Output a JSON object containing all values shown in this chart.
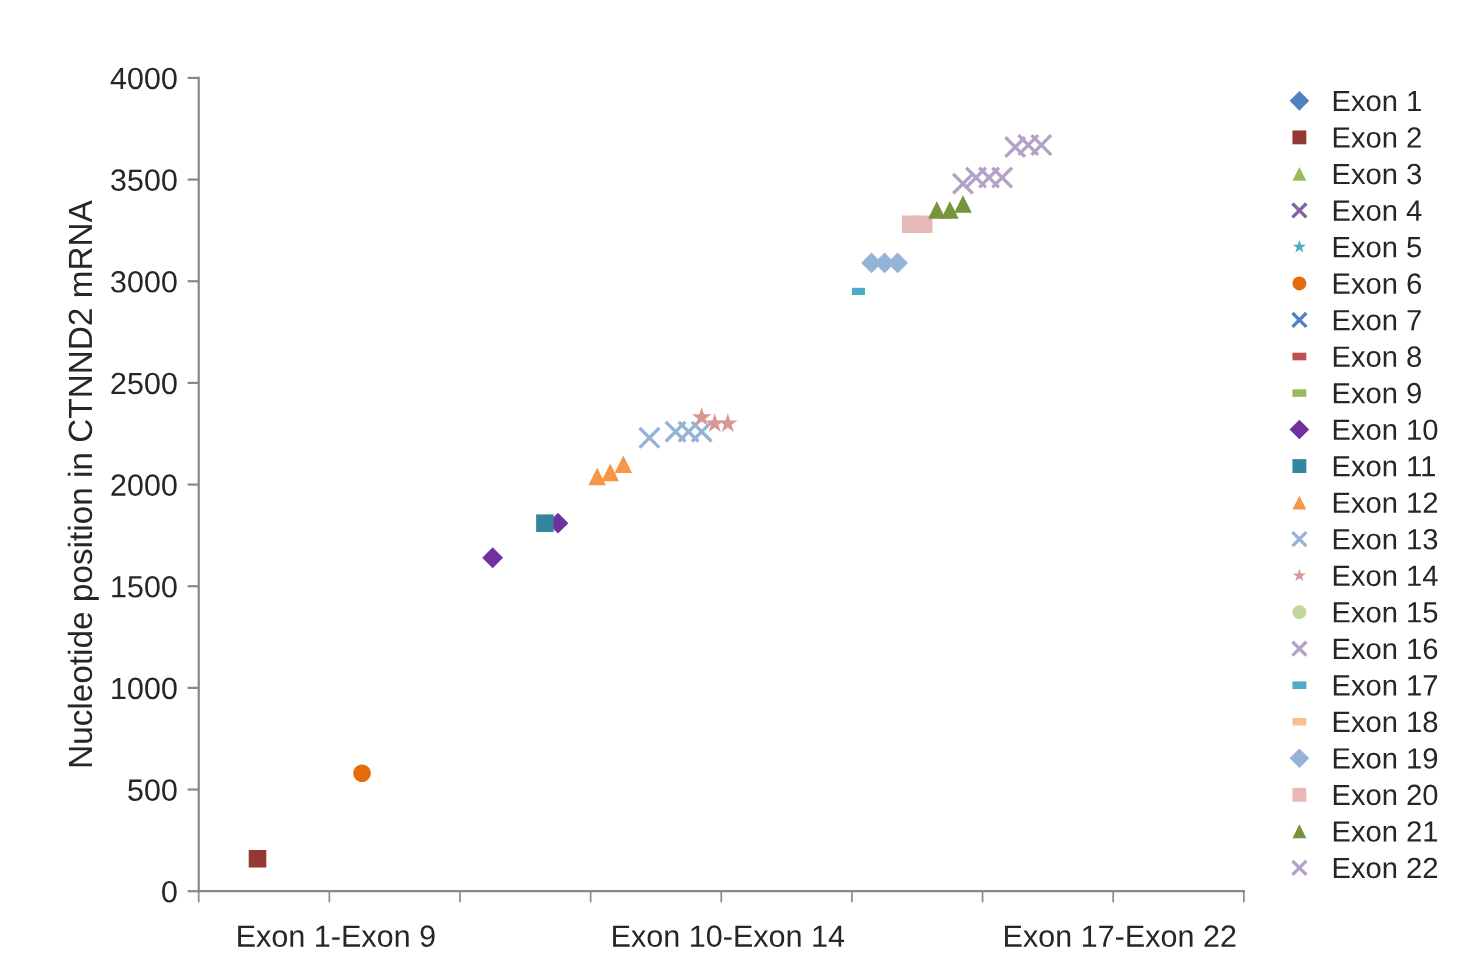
{
  "chart_data": {
    "type": "scatter",
    "ylabel": "Nucleotide position in CTNND2 mRNA",
    "categories": [
      null,
      null,
      null,
      null,
      null,
      null,
      null,
      null,
      null,
      null,
      "Exon 1-Exon 9",
      null,
      null,
      null,
      null,
      null,
      null,
      null,
      null,
      null,
      null,
      null,
      null,
      null,
      null,
      null,
      null,
      null,
      null,
      null,
      null,
      null,
      null,
      null,
      null,
      null,
      null,
      null,
      null,
      null,
      "Exon 10-Exon 14",
      null,
      null,
      null,
      null,
      null,
      null,
      null,
      null,
      null,
      null,
      null,
      null,
      null,
      null,
      null,
      null,
      null,
      null,
      null,
      null,
      null,
      null,
      null,
      null,
      null,
      null,
      null,
      null,
      null,
      "Exon 17-Exon 22",
      null,
      null,
      null,
      null,
      null,
      null,
      null,
      null,
      null
    ],
    "ylim": [
      0,
      4000
    ],
    "yticks": [
      0,
      500,
      1000,
      1500,
      2000,
      2500,
      3000,
      3500,
      4000
    ],
    "grid": false,
    "legend": "right",
    "series": [
      {
        "name": "Exon 1",
        "color": "#4f81bd",
        "marker": "diamond",
        "values": [
          null,
          null,
          null,
          null,
          null,
          null,
          null,
          null,
          null,
          null,
          null,
          null,
          null,
          null,
          null,
          null,
          null,
          null,
          null,
          null,
          null,
          null,
          null,
          null,
          null,
          null,
          null,
          null,
          null,
          null,
          null,
          null,
          null,
          null,
          null,
          null,
          null,
          null,
          null,
          null,
          null,
          null,
          null,
          null,
          null,
          null,
          null,
          null,
          null,
          null,
          null,
          null,
          null,
          null,
          null,
          null,
          null,
          null,
          null,
          null,
          null,
          null,
          null,
          null,
          null,
          null,
          null,
          null,
          null,
          null,
          null,
          null,
          null,
          null,
          null,
          null,
          null,
          null,
          null,
          null
        ]
      },
      {
        "name": "Exon 2",
        "color": "#953735",
        "marker": "square",
        "values": [
          null,
          null,
          null,
          null,
          160,
          null,
          null,
          null,
          null,
          null,
          null,
          null,
          null,
          null,
          null,
          null,
          null,
          null,
          null,
          null,
          null,
          null,
          null,
          null,
          null,
          null,
          null,
          null,
          null,
          null,
          null,
          null,
          null,
          null,
          null,
          null,
          null,
          null,
          null,
          null,
          null,
          null,
          null,
          null,
          null,
          null,
          null,
          null,
          null,
          null,
          null,
          null,
          null,
          null,
          null,
          null,
          null,
          null,
          null,
          null,
          null,
          null,
          null,
          null,
          null,
          null,
          null,
          null,
          null,
          null,
          null,
          null,
          null,
          null,
          null,
          null,
          null,
          null,
          null,
          null
        ]
      },
      {
        "name": "Exon 3",
        "color": "#9bbb59",
        "marker": "triangle",
        "values": [
          null,
          null,
          null,
          null,
          null,
          null,
          null,
          null,
          null,
          null,
          null,
          null,
          null,
          null,
          null,
          null,
          null,
          null,
          null,
          null,
          null,
          null,
          null,
          null,
          null,
          null,
          null,
          null,
          null,
          null,
          null,
          null,
          null,
          null,
          null,
          null,
          null,
          null,
          null,
          null,
          null,
          null,
          null,
          null,
          null,
          null,
          null,
          null,
          null,
          null,
          null,
          null,
          null,
          null,
          null,
          null,
          null,
          null,
          null,
          null,
          null,
          null,
          null,
          null,
          null,
          null,
          null,
          null,
          null,
          null,
          null,
          null,
          null,
          null,
          null,
          null,
          null,
          null,
          null,
          null
        ]
      },
      {
        "name": "Exon 4",
        "color": "#8064a2",
        "marker": "cross",
        "values": [
          null,
          null,
          null,
          null,
          null,
          null,
          null,
          null,
          null,
          null,
          null,
          null,
          null,
          null,
          null,
          null,
          null,
          null,
          null,
          null,
          null,
          null,
          null,
          null,
          null,
          null,
          null,
          null,
          null,
          null,
          null,
          null,
          null,
          null,
          null,
          null,
          null,
          null,
          null,
          null,
          null,
          null,
          null,
          null,
          null,
          null,
          null,
          null,
          null,
          null,
          null,
          null,
          null,
          null,
          null,
          null,
          null,
          null,
          null,
          null,
          null,
          null,
          null,
          null,
          null,
          null,
          null,
          null,
          null,
          null,
          null,
          null,
          null,
          null,
          null,
          null,
          null,
          null,
          null,
          null
        ]
      },
      {
        "name": "Exon 5",
        "color": "#4bacc6",
        "marker": "star",
        "values": [
          null,
          null,
          null,
          null,
          null,
          null,
          null,
          null,
          null,
          null,
          null,
          null,
          null,
          null,
          null,
          null,
          null,
          null,
          null,
          null,
          null,
          null,
          null,
          null,
          null,
          null,
          null,
          null,
          null,
          null,
          null,
          null,
          null,
          null,
          null,
          null,
          null,
          null,
          null,
          null,
          null,
          null,
          null,
          null,
          null,
          null,
          null,
          null,
          null,
          null,
          null,
          null,
          null,
          null,
          null,
          null,
          null,
          null,
          null,
          null,
          null,
          null,
          null,
          null,
          null,
          null,
          null,
          null,
          null,
          null,
          null,
          null,
          null,
          null,
          null,
          null,
          null,
          null,
          null,
          null
        ]
      },
      {
        "name": "Exon 6",
        "color": "#e46c0a",
        "marker": "circle",
        "values": [
          null,
          null,
          null,
          null,
          null,
          null,
          null,
          null,
          null,
          null,
          null,
          null,
          580,
          null,
          null,
          null,
          null,
          null,
          null,
          null,
          null,
          null,
          null,
          null,
          null,
          null,
          null,
          null,
          null,
          null,
          null,
          null,
          null,
          null,
          null,
          null,
          null,
          null,
          null,
          null,
          null,
          null,
          null,
          null,
          null,
          null,
          null,
          null,
          null,
          null,
          null,
          null,
          null,
          null,
          null,
          null,
          null,
          null,
          null,
          null,
          null,
          null,
          null,
          null,
          null,
          null,
          null,
          null,
          null,
          null,
          null,
          null,
          null,
          null,
          null,
          null,
          null,
          null,
          null,
          null
        ]
      },
      {
        "name": "Exon 7",
        "color": "#4f81bd",
        "marker": "cross",
        "values": [
          null,
          null,
          null,
          null,
          null,
          null,
          null,
          null,
          null,
          null,
          null,
          null,
          null,
          null,
          null,
          null,
          null,
          null,
          null,
          null,
          null,
          null,
          null,
          null,
          null,
          null,
          null,
          null,
          null,
          null,
          null,
          null,
          null,
          null,
          null,
          null,
          null,
          null,
          null,
          null,
          null,
          null,
          null,
          null,
          null,
          null,
          null,
          null,
          null,
          null,
          null,
          null,
          null,
          null,
          null,
          null,
          null,
          null,
          null,
          null,
          null,
          null,
          null,
          null,
          null,
          null,
          null,
          null,
          null,
          null,
          null,
          null,
          null,
          null,
          null,
          null,
          null,
          null,
          null,
          null
        ]
      },
      {
        "name": "Exon 8",
        "color": "#c0504d",
        "values": [
          null,
          null,
          null,
          null,
          null,
          null,
          null,
          null,
          null,
          null,
          null,
          null,
          null,
          null,
          null,
          null,
          null,
          null,
          null,
          null,
          null,
          null,
          null,
          null,
          null,
          null,
          null,
          null,
          null,
          null,
          null,
          null,
          null,
          null,
          null,
          null,
          null,
          null,
          null,
          null,
          null,
          null,
          null,
          null,
          null,
          null,
          null,
          null,
          null,
          null,
          null,
          null,
          null,
          null,
          null,
          null,
          null,
          null,
          null,
          null,
          null,
          null,
          null,
          null,
          null,
          null,
          null,
          null,
          null,
          null,
          null,
          null,
          null,
          null,
          null,
          null,
          null,
          null,
          null,
          null
        ]
      },
      {
        "name": "Exon 9",
        "color": "#9bbb59",
        "values": [
          null,
          null,
          null,
          null,
          null,
          null,
          null,
          null,
          null,
          null,
          null,
          null,
          null,
          null,
          null,
          null,
          null,
          null,
          null,
          null,
          null,
          null,
          null,
          null,
          null,
          null,
          null,
          null,
          null,
          null,
          null,
          null,
          null,
          null,
          null,
          null,
          null,
          null,
          null,
          null,
          null,
          null,
          null,
          null,
          null,
          null,
          null,
          null,
          null,
          null,
          null,
          null,
          null,
          null,
          null,
          null,
          null,
          null,
          null,
          null,
          null,
          null,
          null,
          null,
          null,
          null,
          null,
          null,
          null,
          null,
          null,
          null,
          null,
          null,
          null,
          null,
          null,
          null,
          null,
          null
        ]
      },
      {
        "name": "Exon 10",
        "color": "#7030a0",
        "marker": "diamond",
        "values": [
          null,
          null,
          null,
          null,
          null,
          null,
          null,
          null,
          null,
          null,
          null,
          null,
          null,
          null,
          null,
          null,
          null,
          null,
          null,
          null,
          null,
          null,
          1640,
          null,
          null,
          null,
          null,
          1810,
          null,
          null,
          null,
          null,
          null,
          null,
          null,
          null,
          null,
          null,
          null,
          null,
          null,
          null,
          null,
          null,
          null,
          null,
          null,
          null,
          null,
          null,
          null,
          null,
          null,
          null,
          null,
          null,
          null,
          null,
          null,
          null,
          null,
          null,
          null,
          null,
          null,
          null,
          null,
          null,
          null,
          null,
          null,
          null,
          null,
          null,
          null,
          null,
          null,
          null,
          null,
          null
        ]
      },
      {
        "name": "Exon 11",
        "color": "#31859c",
        "marker": "square",
        "values": [
          null,
          null,
          null,
          null,
          null,
          null,
          null,
          null,
          null,
          null,
          null,
          null,
          null,
          null,
          null,
          null,
          null,
          null,
          null,
          null,
          null,
          null,
          null,
          null,
          null,
          null,
          1810,
          null,
          null,
          null,
          null,
          null,
          null,
          null,
          null,
          null,
          null,
          null,
          null,
          null,
          null,
          null,
          null,
          null,
          null,
          null,
          null,
          null,
          null,
          null,
          null,
          null,
          null,
          null,
          null,
          null,
          null,
          null,
          null,
          null,
          null,
          null,
          null,
          null,
          null,
          null,
          null,
          null,
          null,
          null,
          null,
          null,
          null,
          null,
          null,
          null,
          null,
          null,
          null,
          null
        ]
      },
      {
        "name": "Exon 12",
        "color": "#f79646",
        "marker": "triangle",
        "values": [
          null,
          null,
          null,
          null,
          null,
          null,
          null,
          null,
          null,
          null,
          null,
          null,
          null,
          null,
          null,
          null,
          null,
          null,
          null,
          null,
          null,
          null,
          null,
          null,
          null,
          null,
          null,
          null,
          null,
          null,
          2040,
          2060,
          2100,
          null,
          null,
          null,
          null,
          null,
          null,
          null,
          null,
          null,
          null,
          null,
          null,
          null,
          null,
          null,
          null,
          null,
          null,
          null,
          null,
          null,
          null,
          null,
          null,
          null,
          null,
          null,
          null,
          null,
          null,
          null,
          null,
          null,
          null,
          null,
          null,
          null,
          null,
          null,
          null,
          null,
          null,
          null,
          null,
          null,
          null,
          null
        ]
      },
      {
        "name": "Exon 13",
        "color": "#95b3d7",
        "marker": "cross",
        "values": [
          null,
          null,
          null,
          null,
          null,
          null,
          null,
          null,
          null,
          null,
          null,
          null,
          null,
          null,
          null,
          null,
          null,
          null,
          null,
          null,
          null,
          null,
          null,
          null,
          null,
          null,
          null,
          null,
          null,
          null,
          null,
          null,
          null,
          null,
          2230,
          null,
          2260,
          2260,
          2260,
          null,
          null,
          null,
          null,
          null,
          null,
          null,
          null,
          null,
          null,
          null,
          null,
          null,
          null,
          null,
          null,
          null,
          null,
          null,
          null,
          null,
          null,
          null,
          null,
          null,
          null,
          null,
          null,
          null,
          null,
          null,
          null,
          null,
          null,
          null,
          null,
          null,
          null,
          null,
          null,
          null
        ]
      },
      {
        "name": "Exon 14",
        "color": "#d99694",
        "marker": "star",
        "values": [
          null,
          null,
          null,
          null,
          null,
          null,
          null,
          null,
          null,
          null,
          null,
          null,
          null,
          null,
          null,
          null,
          null,
          null,
          null,
          null,
          null,
          null,
          null,
          null,
          null,
          null,
          null,
          null,
          null,
          null,
          null,
          null,
          null,
          null,
          null,
          null,
          null,
          null,
          2330,
          2300,
          2300,
          null,
          null,
          null,
          null,
          null,
          null,
          null,
          null,
          null,
          null,
          null,
          null,
          null,
          null,
          null,
          null,
          null,
          null,
          null,
          null,
          null,
          null,
          null,
          null,
          null,
          null,
          null,
          null,
          null,
          null,
          null,
          null,
          null,
          null,
          null,
          null,
          null,
          null,
          null
        ]
      },
      {
        "name": "Exon 15",
        "color": "#c3d69b",
        "marker": "circle",
        "values": [
          null,
          null,
          null,
          null,
          null,
          null,
          null,
          null,
          null,
          null,
          null,
          null,
          null,
          null,
          null,
          null,
          null,
          null,
          null,
          null,
          null,
          null,
          null,
          null,
          null,
          null,
          null,
          null,
          null,
          null,
          null,
          null,
          null,
          null,
          null,
          null,
          null,
          null,
          null,
          null,
          null,
          null,
          null,
          null,
          null,
          null,
          null,
          null,
          null,
          null,
          null,
          null,
          null,
          null,
          null,
          null,
          null,
          null,
          null,
          null,
          null,
          null,
          null,
          null,
          null,
          null,
          null,
          null,
          null,
          null,
          null,
          null,
          null,
          null,
          null,
          null,
          null,
          null,
          null,
          null
        ]
      },
      {
        "name": "Exon 16",
        "color": "#b3a2c7",
        "marker": "cross",
        "values": [
          null,
          null,
          null,
          null,
          null,
          null,
          null,
          null,
          null,
          null,
          null,
          null,
          null,
          null,
          null,
          null,
          null,
          null,
          null,
          null,
          null,
          null,
          null,
          null,
          null,
          null,
          null,
          null,
          null,
          null,
          null,
          null,
          null,
          null,
          null,
          null,
          null,
          null,
          null,
          null,
          null,
          null,
          null,
          null,
          null,
          null,
          null,
          null,
          null,
          null,
          null,
          null,
          null,
          null,
          null,
          null,
          null,
          null,
          null,
          null,
          null,
          null,
          null,
          null,
          null,
          null,
          null,
          null,
          null,
          null,
          null,
          null,
          null,
          null,
          null,
          null,
          null,
          null,
          null,
          null
        ]
      },
      {
        "name": "Exon 17",
        "color": "#4bacc6",
        "values": [
          null,
          null,
          null,
          null,
          null,
          null,
          null,
          null,
          null,
          null,
          null,
          null,
          null,
          null,
          null,
          null,
          null,
          null,
          null,
          null,
          null,
          null,
          null,
          null,
          null,
          null,
          null,
          null,
          null,
          null,
          null,
          null,
          null,
          null,
          null,
          null,
          null,
          null,
          null,
          null,
          null,
          null,
          null,
          null,
          null,
          null,
          null,
          null,
          null,
          null,
          2950,
          null,
          null,
          null,
          null,
          null,
          null,
          null,
          null,
          null,
          null,
          null,
          null,
          null,
          null,
          null,
          null,
          null,
          null,
          null,
          null,
          null,
          null,
          null,
          null,
          null,
          null,
          null,
          null,
          null
        ]
      },
      {
        "name": "Exon 18",
        "color": "#fac090",
        "values": [
          null,
          null,
          null,
          null,
          null,
          null,
          null,
          null,
          null,
          null,
          null,
          null,
          null,
          null,
          null,
          null,
          null,
          null,
          null,
          null,
          null,
          null,
          null,
          null,
          null,
          null,
          null,
          null,
          null,
          null,
          null,
          null,
          null,
          null,
          null,
          null,
          null,
          null,
          null,
          null,
          null,
          null,
          null,
          null,
          null,
          null,
          null,
          null,
          null,
          null,
          null,
          null,
          null,
          null,
          null,
          null,
          null,
          null,
          null,
          null,
          null,
          null,
          null,
          null,
          null,
          null,
          null,
          null,
          null,
          null,
          null,
          null,
          null,
          null,
          null,
          null,
          null,
          null,
          null,
          null
        ]
      },
      {
        "name": "Exon 19",
        "color": "#95b3d7",
        "marker": "diamond",
        "values": [
          null,
          null,
          null,
          null,
          null,
          null,
          null,
          null,
          null,
          null,
          null,
          null,
          null,
          null,
          null,
          null,
          null,
          null,
          null,
          null,
          null,
          null,
          null,
          null,
          null,
          null,
          null,
          null,
          null,
          null,
          null,
          null,
          null,
          null,
          null,
          null,
          null,
          null,
          null,
          null,
          null,
          null,
          null,
          null,
          null,
          null,
          null,
          null,
          null,
          null,
          null,
          3090,
          3090,
          3090,
          null,
          null,
          null,
          null,
          null,
          null,
          null,
          null,
          null,
          null,
          null,
          null,
          null,
          null,
          null,
          null,
          null,
          null,
          null,
          null,
          null,
          null,
          null,
          null,
          null,
          null
        ]
      },
      {
        "name": "Exon 20",
        "color": "#e6b9b8",
        "marker": "square",
        "values": [
          null,
          null,
          null,
          null,
          null,
          null,
          null,
          null,
          null,
          null,
          null,
          null,
          null,
          null,
          null,
          null,
          null,
          null,
          null,
          null,
          null,
          null,
          null,
          null,
          null,
          null,
          null,
          null,
          null,
          null,
          null,
          null,
          null,
          null,
          null,
          null,
          null,
          null,
          null,
          null,
          null,
          null,
          null,
          null,
          null,
          null,
          null,
          null,
          null,
          null,
          null,
          null,
          null,
          null,
          3280,
          3280,
          null,
          null,
          null,
          null,
          null,
          null,
          null,
          null,
          null,
          null,
          null,
          null,
          null,
          null,
          null,
          null,
          null,
          null,
          null,
          null,
          null,
          null,
          null,
          null
        ]
      },
      {
        "name": "Exon 21",
        "color": "#77933c",
        "marker": "triangle",
        "values": [
          null,
          null,
          null,
          null,
          null,
          null,
          null,
          null,
          null,
          null,
          null,
          null,
          null,
          null,
          null,
          null,
          null,
          null,
          null,
          null,
          null,
          null,
          null,
          null,
          null,
          null,
          null,
          null,
          null,
          null,
          null,
          null,
          null,
          null,
          null,
          null,
          null,
          null,
          null,
          null,
          null,
          null,
          null,
          null,
          null,
          null,
          null,
          null,
          null,
          null,
          null,
          null,
          null,
          null,
          null,
          null,
          3350,
          3350,
          3380,
          null,
          null,
          null,
          null,
          null,
          null,
          null,
          null,
          null,
          null,
          null,
          null,
          null,
          null,
          null,
          null,
          null,
          null,
          null,
          null,
          null
        ]
      },
      {
        "name": "Exon 22",
        "color": "#b3a2c7",
        "marker": "cross",
        "values": [
          null,
          null,
          null,
          null,
          null,
          null,
          null,
          null,
          null,
          null,
          null,
          null,
          null,
          null,
          null,
          null,
          null,
          null,
          null,
          null,
          null,
          null,
          null,
          null,
          null,
          null,
          null,
          null,
          null,
          null,
          null,
          null,
          null,
          null,
          null,
          null,
          null,
          null,
          null,
          null,
          null,
          null,
          null,
          null,
          null,
          null,
          null,
          null,
          null,
          null,
          null,
          null,
          null,
          null,
          null,
          null,
          null,
          null,
          3480,
          3510,
          3510,
          3510,
          3660,
          3670,
          3670,
          null,
          null,
          null,
          null,
          null,
          null,
          null,
          null,
          null,
          null,
          null,
          null,
          null,
          null,
          null
        ]
      }
    ]
  }
}
